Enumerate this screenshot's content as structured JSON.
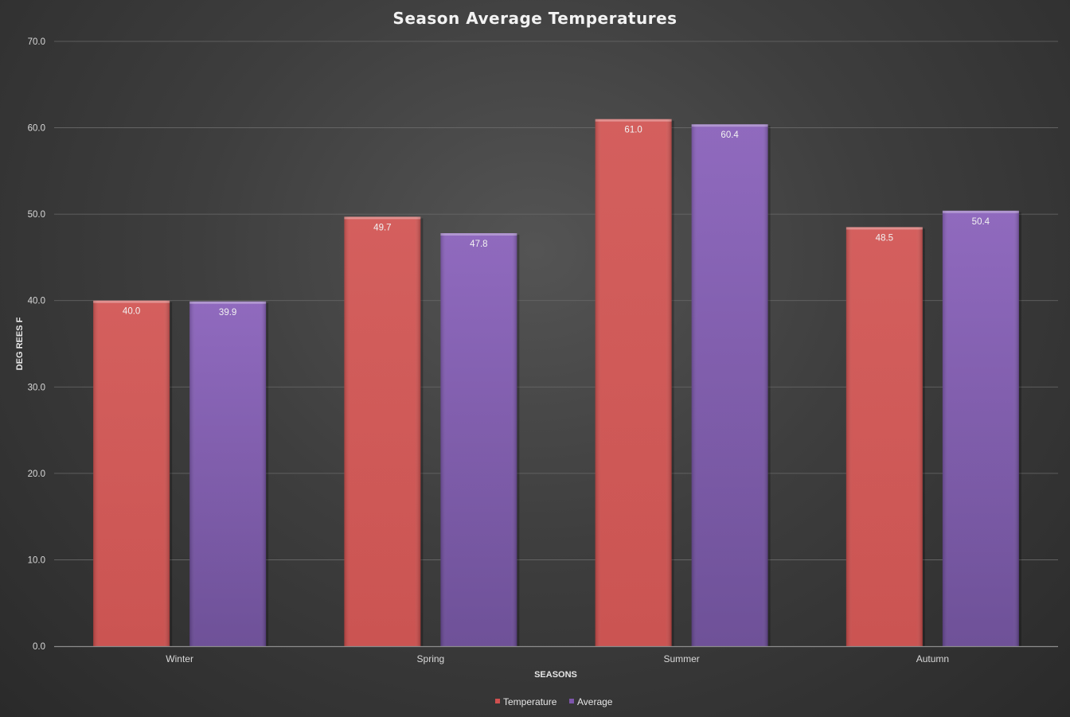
{
  "chart_data": {
    "type": "bar",
    "title": "Season Average Temperatures",
    "xlabel": "SEASONS",
    "ylabel": "DEG REES F",
    "categories": [
      "Winter",
      "Spring",
      "Summer",
      "Autumn"
    ],
    "series": [
      {
        "name": "Temperature",
        "values": [
          40.0,
          49.7,
          61.0,
          48.5
        ],
        "color": "#d0504f"
      },
      {
        "name": "Average",
        "values": [
          39.9,
          47.8,
          60.4,
          50.4
        ],
        "color": "#7d55ab"
      }
    ],
    "ylim": [
      0,
      70
    ],
    "yticks": [
      "0.0",
      "10.0",
      "20.0",
      "30.0",
      "40.0",
      "50.0",
      "60.0",
      "70.0"
    ],
    "data_labels": [
      [
        "40.0",
        "49.7",
        "61.0",
        "48.5"
      ],
      [
        "39.9",
        "47.8",
        "60.4",
        "50.4"
      ]
    ],
    "grid": true,
    "legend_position": "bottom"
  }
}
